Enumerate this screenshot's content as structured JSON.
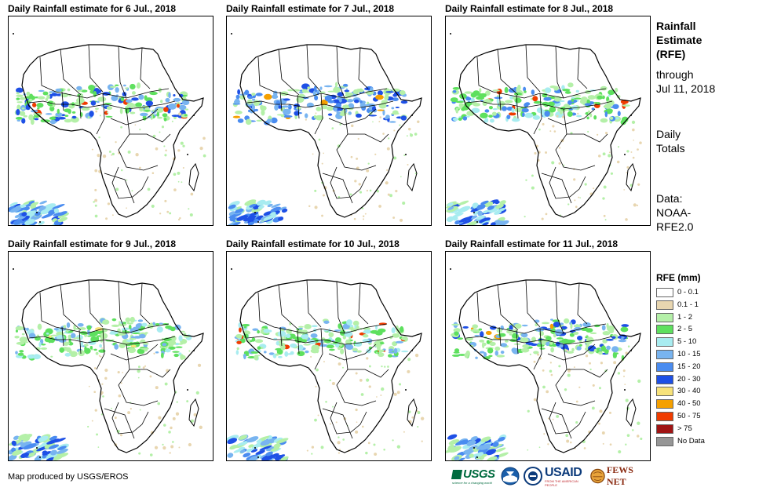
{
  "panels": [
    {
      "title": "Daily Rainfall estimate for 6 Jul., 2018",
      "date": "6 Jul., 2018"
    },
    {
      "title": "Daily Rainfall estimate for 7 Jul., 2018",
      "date": "7 Jul., 2018"
    },
    {
      "title": "Daily Rainfall estimate for 8 Jul., 2018",
      "date": "8 Jul., 2018"
    },
    {
      "title": "Daily Rainfall estimate for 9 Jul., 2018",
      "date": "9 Jul., 2018"
    },
    {
      "title": "Daily Rainfall estimate for 10 Jul., 2018",
      "date": "10 Jul., 2018"
    },
    {
      "title": "Daily Rainfall estimate for 11 Jul., 2018",
      "date": "11 Jul., 2018"
    }
  ],
  "sidebar": {
    "heading_lines": [
      "Rainfall",
      "Estimate",
      "(RFE)"
    ],
    "through_lines": [
      "through",
      "Jul 11, 2018"
    ],
    "totals_lines": [
      "Daily",
      "Totals"
    ],
    "data_lines": [
      "Data:",
      "NOAA-",
      "RFE2.0"
    ]
  },
  "legend": {
    "title": "RFE (mm)",
    "items": [
      {
        "label": "0 - 0.1",
        "color": "#ffffff"
      },
      {
        "label": "0.1 - 1",
        "color": "#e8d6b0"
      },
      {
        "label": "1 - 2",
        "color": "#b4f0a8"
      },
      {
        "label": "2 - 5",
        "color": "#5ee05e"
      },
      {
        "label": "5 - 10",
        "color": "#a8ecf0"
      },
      {
        "label": "10 - 15",
        "color": "#78b4f0"
      },
      {
        "label": "15 - 20",
        "color": "#4a8cf0"
      },
      {
        "label": "20 - 30",
        "color": "#1e50e6"
      },
      {
        "label": "30 - 40",
        "color": "#f7e27a"
      },
      {
        "label": "40 - 50",
        "color": "#f5a000"
      },
      {
        "label": "50 - 75",
        "color": "#f03c00"
      },
      {
        "label": "> 75",
        "color": "#a01414"
      },
      {
        "label": "No Data",
        "color": "#969696"
      }
    ]
  },
  "credit": "Map produced by USGS/EROS",
  "logos": {
    "usgs": "USGS",
    "usgs_tagline": "science for a changing world",
    "usaid": "USAID",
    "usaid_tagline": "FROM THE AMERICAN PEOPLE",
    "fewsnet": "FEWS NET"
  }
}
